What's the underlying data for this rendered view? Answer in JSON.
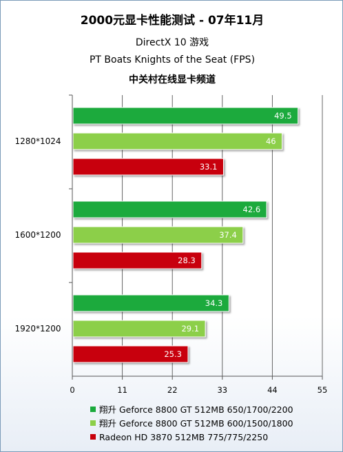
{
  "titles": {
    "main": "2000元显卡性能测试 - 07年11月",
    "sub1": "DirectX 10 游戏",
    "sub2": "PT Boats Knights of the Seat (FPS)",
    "source": "中关村在线显卡频道"
  },
  "chart_data": {
    "type": "bar",
    "orientation": "horizontal",
    "categories": [
      "1280*1024",
      "1600*1200",
      "1920*1200"
    ],
    "series": [
      {
        "name": "翔升 Geforce 8800 GT 512MB 650/1700/2200",
        "values": [
          49.5,
          42.6,
          34.3
        ],
        "color": "#1aaa3c"
      },
      {
        "name": "翔升 Geforce 8800 GT 512MB 600/1500/1800",
        "values": [
          46,
          37.4,
          29.1
        ],
        "color": "#8ccf48"
      },
      {
        "name": "Radeon HD 3870 512MB 775/775/2250",
        "values": [
          33.1,
          28.3,
          25.3
        ],
        "color": "#c8000a"
      }
    ],
    "xlim": [
      0,
      55
    ],
    "xticks": [
      "0",
      "11",
      "22",
      "33",
      "44",
      "55"
    ],
    "grid": true,
    "data_labels": true,
    "legend_position": "bottom"
  }
}
